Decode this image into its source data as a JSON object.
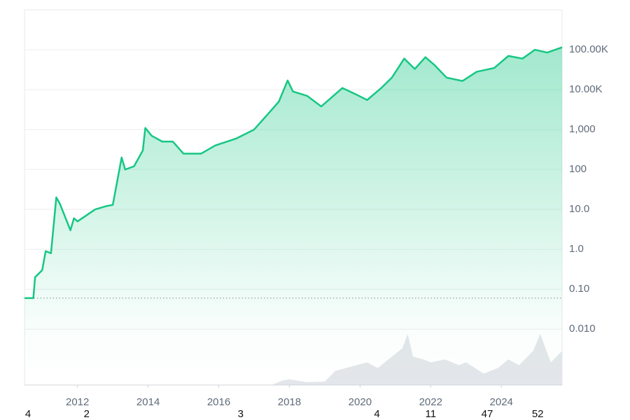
{
  "chart_data": {
    "type": "line",
    "log_scale": true,
    "grid": true,
    "color": "#16c784",
    "x": [
      2010.5,
      2010.75,
      2010.8,
      2011.0,
      2011.1,
      2011.25,
      2011.4,
      2011.5,
      2011.8,
      2011.9,
      2012.0,
      2012.5,
      2012.8,
      2013.0,
      2013.25,
      2013.35,
      2013.6,
      2013.85,
      2013.92,
      2014.1,
      2014.4,
      2014.7,
      2015.0,
      2015.5,
      2015.9,
      2016.5,
      2017.0,
      2017.4,
      2017.7,
      2017.95,
      2018.1,
      2018.5,
      2018.9,
      2019.5,
      2019.9,
      2020.2,
      2020.6,
      2020.9,
      2021.25,
      2021.55,
      2021.85,
      2022.1,
      2022.45,
      2022.9,
      2023.3,
      2023.8,
      2024.2,
      2024.6,
      2024.95,
      2025.3,
      2025.72
    ],
    "values": [
      0.06,
      0.06,
      0.2,
      0.3,
      0.9,
      0.8,
      20,
      14,
      3,
      6,
      5,
      10,
      12,
      13,
      200,
      100,
      120,
      300,
      1100,
      700,
      500,
      500,
      250,
      250,
      400,
      600,
      1000,
      2500,
      5000,
      17000,
      9000,
      7000,
      3800,
      11000,
      7500,
      5500,
      11000,
      20000,
      60000,
      33000,
      65000,
      42000,
      20000,
      16500,
      28000,
      35000,
      70000,
      60000,
      100000,
      85000,
      115000
    ],
    "reference_line": 0.06,
    "xlim": [
      2010.5,
      2025.72
    ],
    "xticks": [
      2012,
      2014,
      2016,
      2018,
      2020,
      2022,
      2024
    ],
    "ylim": [
      0.0004,
      1000000
    ],
    "yticks": [
      {
        "value": 0.01,
        "label": "0.010"
      },
      {
        "value": 0.1,
        "label": "0.10"
      },
      {
        "value": 1,
        "label": "1.0"
      },
      {
        "value": 10,
        "label": "10.0"
      },
      100,
      {
        "value": 1000,
        "label": "1,000"
      },
      {
        "value": 10000,
        "label": "10.00K"
      },
      {
        "value": 100000,
        "label": "100.00K"
      }
    ],
    "volume": {
      "color": "#e3e6ea",
      "vlim": [
        0,
        100
      ],
      "x": [
        2017.5,
        2017.8,
        2018.0,
        2018.5,
        2019.0,
        2019.3,
        2019.6,
        2019.9,
        2020.2,
        2020.5,
        2020.8,
        2021.0,
        2021.2,
        2021.35,
        2021.5,
        2021.8,
        2022.0,
        2022.4,
        2022.8,
        2023.0,
        2023.5,
        2023.9,
        2024.2,
        2024.5,
        2024.9,
        2025.1,
        2025.4,
        2025.72
      ],
      "values": [
        0,
        8,
        10,
        5,
        6,
        25,
        30,
        35,
        40,
        30,
        45,
        55,
        65,
        90,
        50,
        45,
        40,
        45,
        35,
        40,
        20,
        30,
        45,
        35,
        60,
        90,
        40,
        60
      ]
    },
    "markers": [
      {
        "x": 2010.6,
        "label": "4"
      },
      {
        "x": 2012.26,
        "label": "2"
      },
      {
        "x": 2016.62,
        "label": "3"
      },
      {
        "x": 2020.48,
        "label": "4"
      },
      {
        "x": 2022.0,
        "label": "11"
      },
      {
        "x": 2023.6,
        "label": "47"
      },
      {
        "x": 2025.03,
        "label": "52"
      }
    ]
  }
}
